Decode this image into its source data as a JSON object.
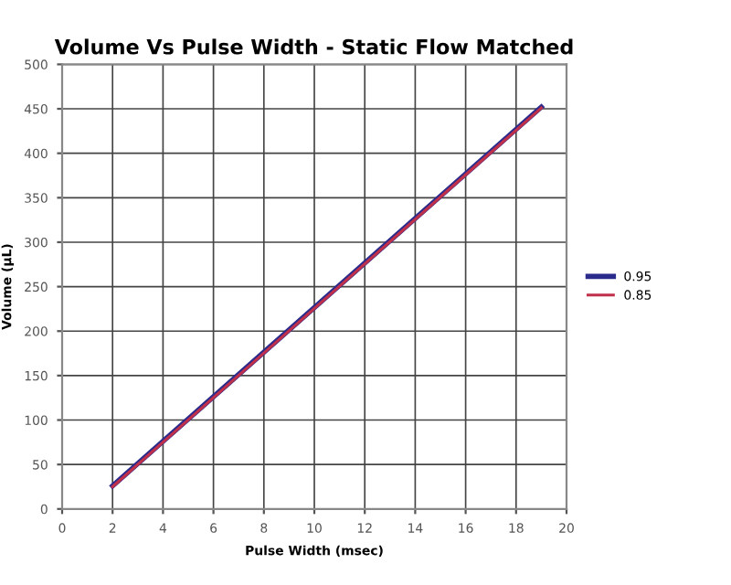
{
  "chart_data": {
    "type": "line",
    "title": "Volume Vs Pulse Width - Static Flow Matched",
    "xlabel": "Pulse Width (msec)",
    "ylabel": "Volume (µL)",
    "series": [
      {
        "name": "0.95",
        "color": "#2b2b8c",
        "values": [
          26,
          452
        ]
      },
      {
        "name": "0.85",
        "color": "#c0304a",
        "values": [
          25,
          451
        ]
      }
    ],
    "x": [
      2,
      19
    ],
    "xlim": [
      0,
      20
    ],
    "xticks": [
      0,
      2,
      4,
      6,
      8,
      10,
      12,
      14,
      16,
      18,
      20
    ],
    "ylim": [
      0,
      500
    ],
    "yticks": [
      0,
      50,
      100,
      150,
      200,
      250,
      300,
      350,
      400,
      450,
      500
    ],
    "grid": true,
    "legend": "right",
    "marker": "none",
    "line_style": "solid"
  }
}
